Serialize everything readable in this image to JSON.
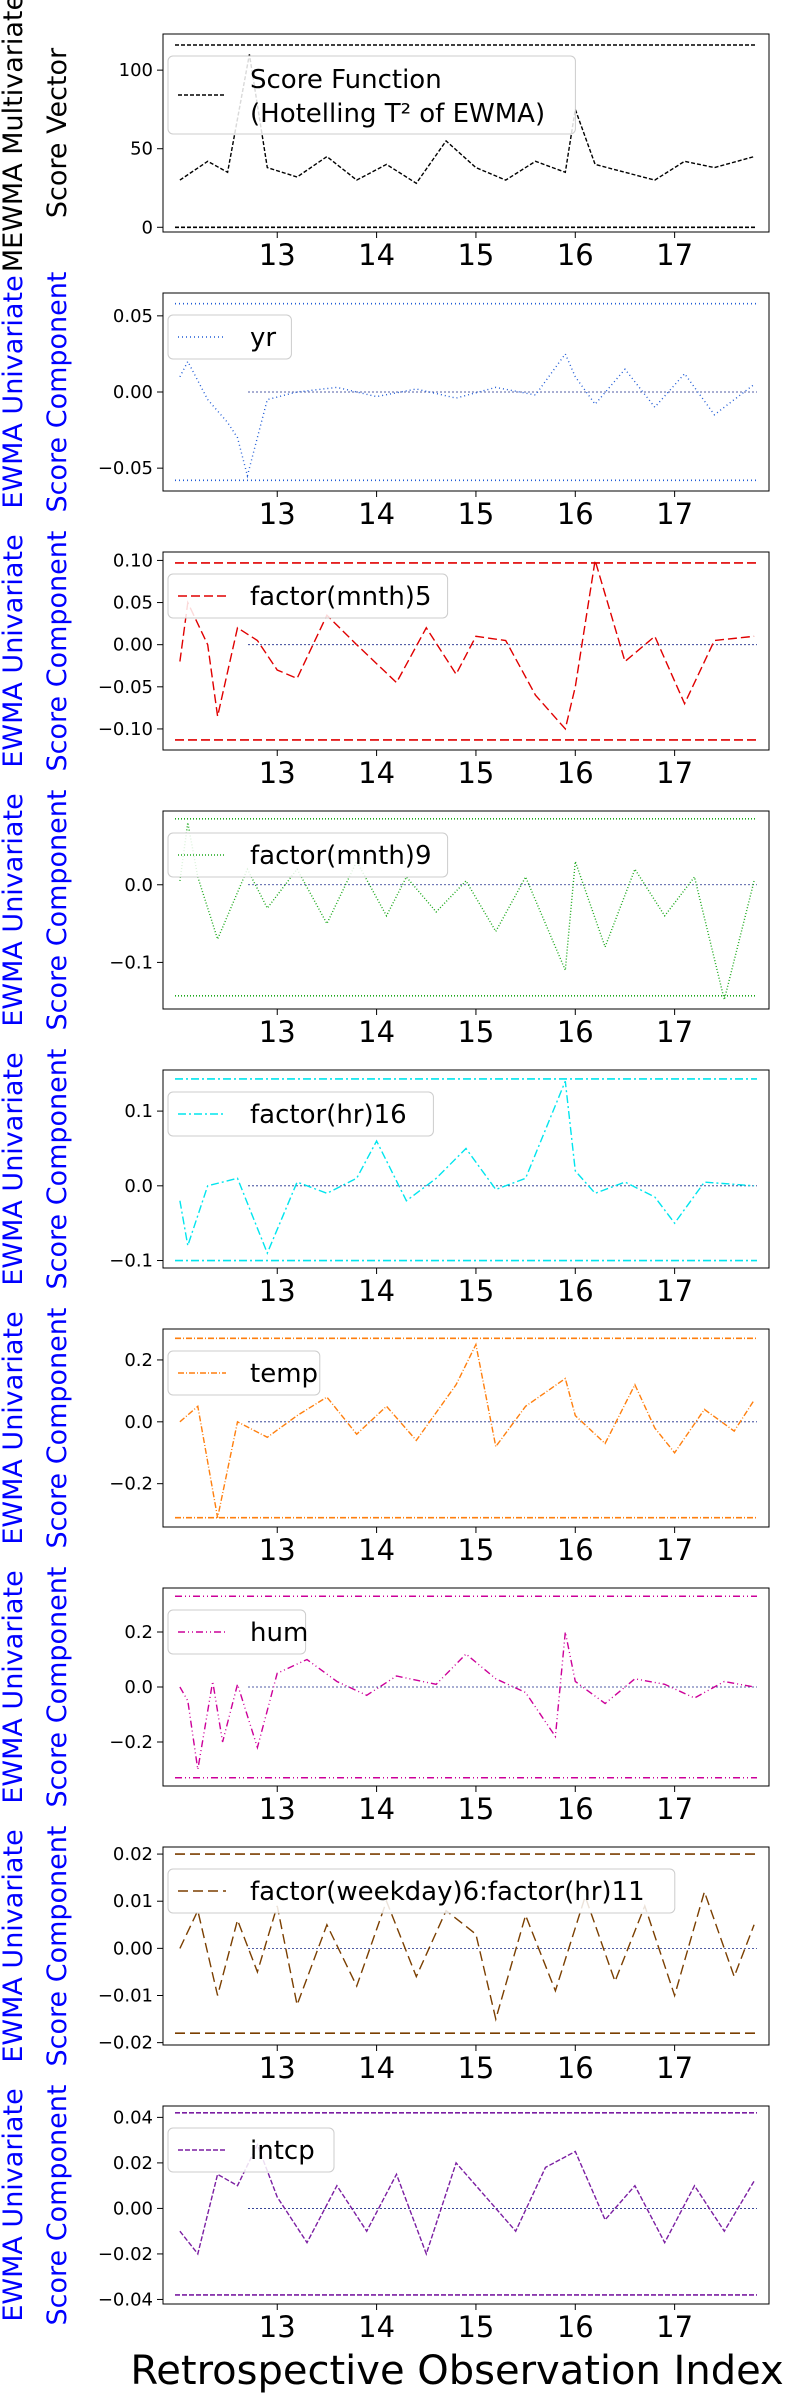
{
  "figure": {
    "xlabel": "Retrospective Observation Index"
  },
  "chart_data": [
    {
      "type": "line",
      "ylabel": [
        "MEWMA Multivariate",
        "Score Vector"
      ],
      "ylabel_color": "#000000",
      "legend": [
        "Score Function",
        "(Hotelling T² of EWMA)"
      ],
      "legend_placement": "upper-left",
      "color": "#000000",
      "dash": "4,2",
      "ylim": [
        -3,
        123
      ],
      "yticks": [
        0,
        50,
        100
      ],
      "ytick_labels": [
        "0",
        "50",
        "100"
      ],
      "xlim": [
        11.85,
        17.95
      ],
      "xticks": [
        13,
        14,
        15,
        16,
        17
      ],
      "xtick_labels": [
        "13",
        "14",
        "15",
        "16",
        "17"
      ],
      "upper_limit": 116,
      "lower_limit": 0,
      "center_line": null,
      "series": {
        "x": [
          12.02,
          12.3,
          12.5,
          12.72,
          12.9,
          13.2,
          13.5,
          13.8,
          14.1,
          14.4,
          14.7,
          15.0,
          15.3,
          15.6,
          15.9,
          16.0,
          16.2,
          16.5,
          16.8,
          17.1,
          17.4,
          17.8
        ],
        "y": [
          30,
          42,
          35,
          110,
          38,
          32,
          45,
          30,
          40,
          28,
          55,
          38,
          30,
          42,
          35,
          75,
          40,
          35,
          30,
          42,
          38,
          45
        ]
      }
    },
    {
      "type": "line",
      "ylabel": [
        "EWMA Univariate",
        "Score Component"
      ],
      "ylabel_color": "#0000ff",
      "legend": [
        "yr"
      ],
      "legend_placement": "upper-left",
      "color": "#1f5bd6",
      "dash": "1,3",
      "ylim": [
        -0.065,
        0.065
      ],
      "yticks": [
        -0.05,
        0.0,
        0.05
      ],
      "ytick_labels": [
        "−0.05",
        "0.00",
        "0.05"
      ],
      "xlim": [
        11.85,
        17.95
      ],
      "xticks": [
        13,
        14,
        15,
        16,
        17
      ],
      "xtick_labels": [
        "13",
        "14",
        "15",
        "16",
        "17"
      ],
      "upper_limit": 0.058,
      "lower_limit": -0.058,
      "center_line": 0,
      "series": {
        "x": [
          12.02,
          12.1,
          12.3,
          12.5,
          12.6,
          12.7,
          12.9,
          13.2,
          13.6,
          14.0,
          14.4,
          14.8,
          15.2,
          15.6,
          15.9,
          16.0,
          16.2,
          16.5,
          16.8,
          17.1,
          17.4,
          17.8
        ],
        "y": [
          0.01,
          0.02,
          -0.005,
          -0.02,
          -0.03,
          -0.055,
          -0.005,
          0.0,
          0.003,
          -0.003,
          0.002,
          -0.004,
          0.003,
          -0.002,
          0.025,
          0.01,
          -0.008,
          0.015,
          -0.01,
          0.012,
          -0.015,
          0.005
        ]
      }
    },
    {
      "type": "line",
      "ylabel": [
        "EWMA Univariate",
        "Score Component"
      ],
      "ylabel_color": "#0000ff",
      "legend": [
        "factor(mnth)5"
      ],
      "legend_placement": "upper-left",
      "color": "#e00000",
      "dash": "9,4",
      "ylim": [
        -0.125,
        0.11
      ],
      "yticks": [
        -0.1,
        -0.05,
        0.0,
        0.05,
        0.1
      ],
      "ytick_labels": [
        "−0.10",
        "−0.05",
        "0.00",
        "0.05",
        "0.10"
      ],
      "xlim": [
        11.85,
        17.95
      ],
      "xticks": [
        13,
        14,
        15,
        16,
        17
      ],
      "xtick_labels": [
        "13",
        "14",
        "15",
        "16",
        "17"
      ],
      "upper_limit": 0.097,
      "lower_limit": -0.113,
      "center_line": 0,
      "series": {
        "x": [
          12.02,
          12.1,
          12.3,
          12.4,
          12.6,
          12.8,
          13.0,
          13.2,
          13.5,
          13.8,
          14.2,
          14.5,
          14.8,
          15.0,
          15.3,
          15.6,
          15.9,
          16.0,
          16.2,
          16.5,
          16.8,
          17.1,
          17.4,
          17.8
        ],
        "y": [
          -0.02,
          0.05,
          0.0,
          -0.085,
          0.02,
          0.005,
          -0.03,
          -0.04,
          0.035,
          0.0,
          -0.045,
          0.02,
          -0.035,
          0.01,
          0.005,
          -0.06,
          -0.1,
          -0.05,
          0.1,
          -0.02,
          0.01,
          -0.07,
          0.005,
          0.01
        ]
      }
    },
    {
      "type": "line",
      "ylabel": [
        "EWMA Univariate",
        "Score Component"
      ],
      "ylabel_color": "#0000ff",
      "legend": [
        "factor(mnth)9"
      ],
      "legend_placement": "upper-left",
      "color": "#1aa81a",
      "dash": "1,2",
      "ylim": [
        -0.16,
        0.095
      ],
      "yticks": [
        -0.1,
        0.0
      ],
      "ytick_labels": [
        "−0.1",
        "0.0"
      ],
      "xlim": [
        11.85,
        17.95
      ],
      "xticks": [
        13,
        14,
        15,
        16,
        17
      ],
      "xtick_labels": [
        "13",
        "14",
        "15",
        "16",
        "17"
      ],
      "upper_limit": 0.085,
      "lower_limit": -0.143,
      "center_line": 0,
      "series": {
        "x": [
          12.02,
          12.1,
          12.2,
          12.4,
          12.7,
          12.9,
          13.2,
          13.5,
          13.8,
          14.1,
          14.3,
          14.6,
          14.9,
          15.2,
          15.5,
          15.9,
          16.0,
          16.3,
          16.6,
          16.9,
          17.2,
          17.5,
          17.8
        ],
        "y": [
          0.005,
          0.08,
          0.01,
          -0.07,
          0.02,
          -0.03,
          0.02,
          -0.05,
          0.03,
          -0.04,
          0.01,
          -0.035,
          0.005,
          -0.06,
          0.01,
          -0.11,
          0.03,
          -0.08,
          0.02,
          -0.04,
          0.01,
          -0.148,
          0.005
        ]
      }
    },
    {
      "type": "line",
      "ylabel": [
        "EWMA Univariate",
        "Score Component"
      ],
      "ylabel_color": "#0000ff",
      "legend": [
        "factor(hr)16"
      ],
      "legend_placement": "upper-left",
      "color": "#00e5ee",
      "dash": "8,3,2,3",
      "ylim": [
        -0.11,
        0.155
      ],
      "yticks": [
        -0.1,
        0.0,
        0.1
      ],
      "ytick_labels": [
        "−0.1",
        "0.0",
        "0.1"
      ],
      "xlim": [
        11.85,
        17.95
      ],
      "xticks": [
        13,
        14,
        15,
        16,
        17
      ],
      "xtick_labels": [
        "13",
        "14",
        "15",
        "16",
        "17"
      ],
      "upper_limit": 0.143,
      "lower_limit": -0.1,
      "center_line": 0,
      "series": {
        "x": [
          12.02,
          12.1,
          12.3,
          12.6,
          12.9,
          13.2,
          13.5,
          13.8,
          14.0,
          14.3,
          14.6,
          14.9,
          15.2,
          15.5,
          15.9,
          16.0,
          16.2,
          16.5,
          16.8,
          17.0,
          17.3,
          17.8
        ],
        "y": [
          -0.02,
          -0.08,
          0.0,
          0.01,
          -0.09,
          0.005,
          -0.01,
          0.01,
          0.06,
          -0.02,
          0.01,
          0.05,
          -0.005,
          0.01,
          0.14,
          0.02,
          -0.01,
          0.005,
          -0.015,
          -0.05,
          0.005,
          0.0
        ]
      }
    },
    {
      "type": "line",
      "ylabel": [
        "EWMA Univariate",
        "Score Component"
      ],
      "ylabel_color": "#0000ff",
      "legend": [
        "temp"
      ],
      "legend_placement": "upper-left",
      "color": "#ff7f0e",
      "dash": "6,2,1,2",
      "ylim": [
        -0.34,
        0.3
      ],
      "yticks": [
        -0.2,
        0.0,
        0.2
      ],
      "ytick_labels": [
        "−0.2",
        "0.0",
        "0.2"
      ],
      "xlim": [
        11.85,
        17.95
      ],
      "xticks": [
        13,
        14,
        15,
        16,
        17
      ],
      "xtick_labels": [
        "13",
        "14",
        "15",
        "16",
        "17"
      ],
      "upper_limit": 0.27,
      "lower_limit": -0.31,
      "center_line": 0,
      "series": {
        "x": [
          12.02,
          12.2,
          12.4,
          12.6,
          12.9,
          13.2,
          13.5,
          13.8,
          14.1,
          14.4,
          14.8,
          15.0,
          15.2,
          15.5,
          15.9,
          16.0,
          16.3,
          16.6,
          16.8,
          17.0,
          17.3,
          17.6,
          17.8
        ],
        "y": [
          0.0,
          0.05,
          -0.31,
          0.0,
          -0.05,
          0.02,
          0.08,
          -0.04,
          0.05,
          -0.06,
          0.12,
          0.25,
          -0.08,
          0.05,
          0.14,
          0.02,
          -0.07,
          0.12,
          -0.02,
          -0.1,
          0.04,
          -0.03,
          0.07
        ]
      }
    },
    {
      "type": "line",
      "ylabel": [
        "EWMA Univariate",
        "Score Component"
      ],
      "ylabel_color": "#0000ff",
      "legend": [
        "hum"
      ],
      "legend_placement": "upper-left",
      "color": "#cc0099",
      "dash": "7,3,1,3,1,3",
      "ylim": [
        -0.36,
        0.36
      ],
      "yticks": [
        -0.2,
        0.0,
        0.2
      ],
      "ytick_labels": [
        "−0.2",
        "0.0",
        "0.2"
      ],
      "xlim": [
        11.85,
        17.95
      ],
      "xticks": [
        13,
        14,
        15,
        16,
        17
      ],
      "xtick_labels": [
        "13",
        "14",
        "15",
        "16",
        "17"
      ],
      "upper_limit": 0.33,
      "lower_limit": -0.33,
      "center_line": 0,
      "series": {
        "x": [
          12.02,
          12.1,
          12.2,
          12.35,
          12.45,
          12.6,
          12.8,
          13.0,
          13.3,
          13.6,
          13.9,
          14.2,
          14.6,
          14.9,
          15.2,
          15.5,
          15.8,
          15.9,
          16.0,
          16.3,
          16.6,
          16.9,
          17.2,
          17.5,
          17.8
        ],
        "y": [
          0.0,
          -0.05,
          -0.3,
          0.02,
          -0.2,
          0.01,
          -0.22,
          0.05,
          0.1,
          0.02,
          -0.03,
          0.04,
          0.01,
          0.12,
          0.03,
          -0.02,
          -0.18,
          0.2,
          0.02,
          -0.06,
          0.03,
          0.01,
          -0.04,
          0.02,
          0.0
        ]
      }
    },
    {
      "type": "line",
      "ylabel": [
        "EWMA Univariate",
        "Score Component"
      ],
      "ylabel_color": "#0000ff",
      "legend": [
        "factor(weekday)6:factor(hr)11"
      ],
      "legend_placement": "upper-left",
      "color": "#7b3f00",
      "dash": "10,5",
      "ylim": [
        -0.0205,
        0.0215
      ],
      "yticks": [
        -0.02,
        -0.01,
        0.0,
        0.01,
        0.02
      ],
      "ytick_labels": [
        "−0.02",
        "−0.01",
        "0.00",
        "0.01",
        "0.02"
      ],
      "xlim": [
        11.85,
        17.95
      ],
      "xticks": [
        13,
        14,
        15,
        16,
        17
      ],
      "xtick_labels": [
        "13",
        "14",
        "15",
        "16",
        "17"
      ],
      "upper_limit": 0.02,
      "lower_limit": -0.018,
      "center_line": 0,
      "series": {
        "x": [
          12.02,
          12.2,
          12.4,
          12.6,
          12.8,
          13.0,
          13.2,
          13.5,
          13.8,
          14.1,
          14.4,
          14.7,
          15.0,
          15.2,
          15.5,
          15.8,
          16.1,
          16.4,
          16.7,
          17.0,
          17.3,
          17.6,
          17.8
        ],
        "y": [
          0.0,
          0.008,
          -0.01,
          0.006,
          -0.005,
          0.009,
          -0.012,
          0.005,
          -0.008,
          0.01,
          -0.006,
          0.008,
          0.003,
          -0.015,
          0.007,
          -0.009,
          0.011,
          -0.007,
          0.009,
          -0.01,
          0.012,
          -0.006,
          0.005
        ]
      }
    },
    {
      "type": "line",
      "ylabel": [
        "EWMA Univariate",
        "Score Component"
      ],
      "ylabel_color": "#0000ff",
      "legend": [
        "intcp"
      ],
      "legend_placement": "upper-left",
      "color": "#7b1fa2",
      "dash": "5,2",
      "ylim": [
        -0.042,
        0.045
      ],
      "yticks": [
        -0.04,
        -0.02,
        0.0,
        0.02,
        0.04
      ],
      "ytick_labels": [
        "−0.04",
        "−0.02",
        "0.00",
        "0.02",
        "0.04"
      ],
      "xlim": [
        11.85,
        17.95
      ],
      "xticks": [
        13,
        14,
        15,
        16,
        17
      ],
      "xtick_labels": [
        "13",
        "14",
        "15",
        "16",
        "17"
      ],
      "upper_limit": 0.042,
      "lower_limit": -0.038,
      "center_line": 0,
      "series": {
        "x": [
          12.02,
          12.2,
          12.4,
          12.6,
          12.8,
          13.0,
          13.3,
          13.6,
          13.9,
          14.2,
          14.5,
          14.8,
          15.1,
          15.4,
          15.7,
          16.0,
          16.3,
          16.6,
          16.9,
          17.2,
          17.5,
          17.8
        ],
        "y": [
          -0.01,
          -0.02,
          0.015,
          0.01,
          0.028,
          0.005,
          -0.015,
          0.01,
          -0.01,
          0.015,
          -0.02,
          0.02,
          0.005,
          -0.01,
          0.018,
          0.025,
          -0.005,
          0.01,
          -0.015,
          0.01,
          -0.01,
          0.012
        ]
      }
    }
  ]
}
